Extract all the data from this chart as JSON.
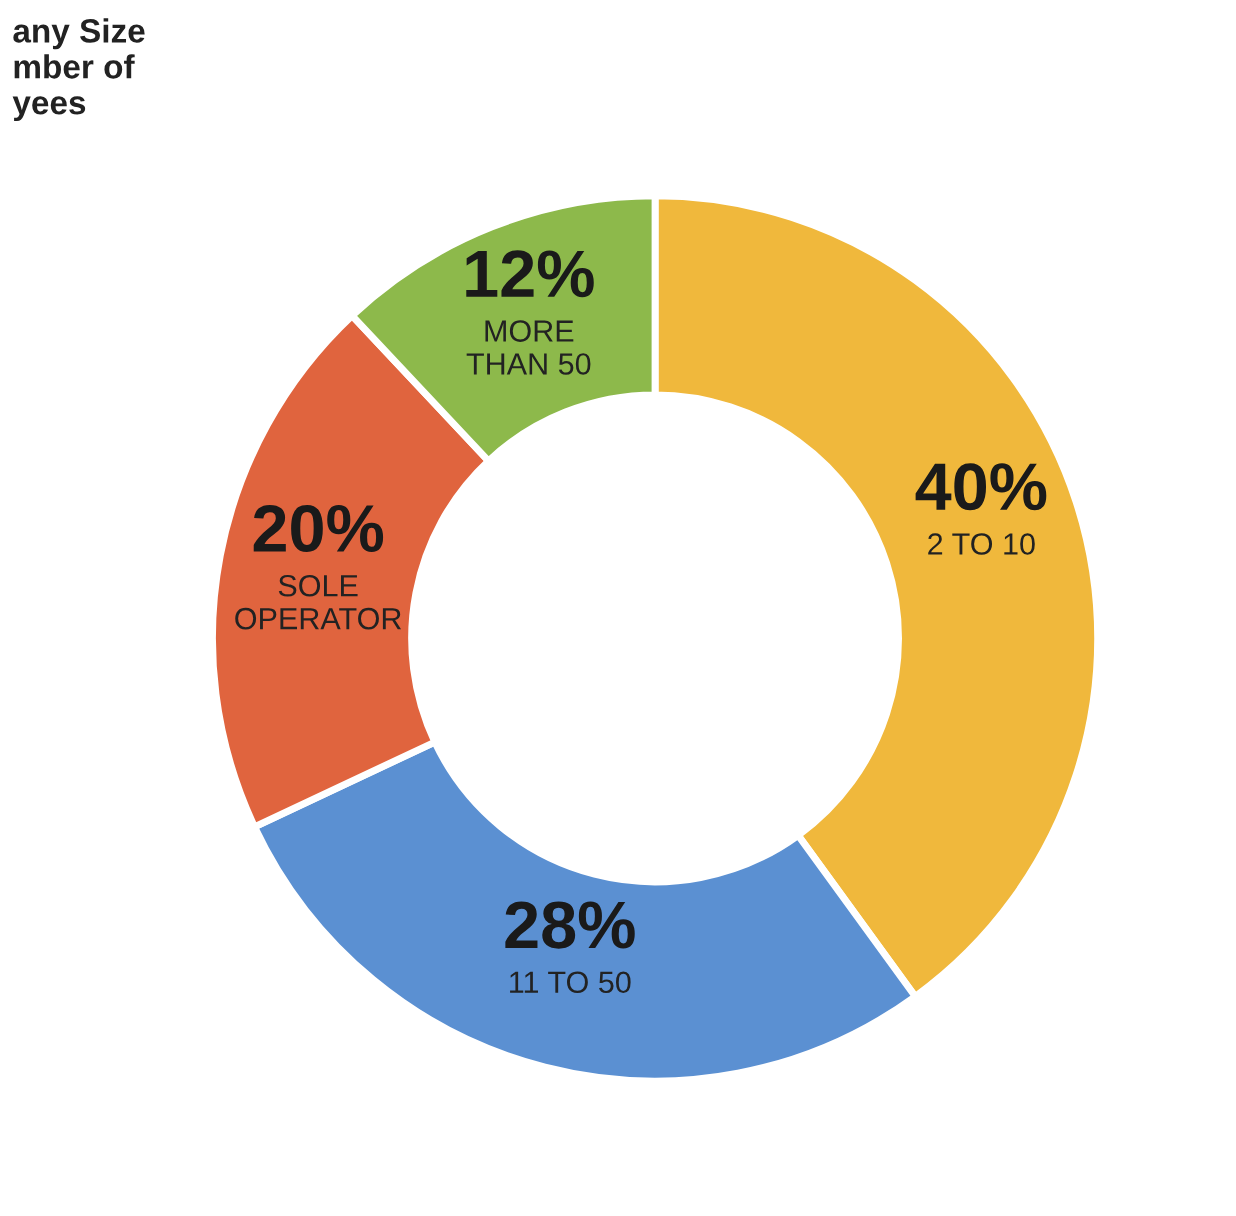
{
  "chart_data": {
    "type": "donut",
    "title": "any Size\nmber of\nyees",
    "categories": [
      "2 TO 10",
      "11 TO 50",
      "SOLE\nOPERATOR",
      "MORE\nTHAN 50"
    ],
    "values": [
      40,
      28,
      20,
      12
    ],
    "value_labels": [
      "40%",
      "28%",
      "20%",
      "12%"
    ],
    "colors": [
      "#f0b83c",
      "#5b90d2",
      "#e0643e",
      "#8db94b"
    ],
    "legend": false
  }
}
